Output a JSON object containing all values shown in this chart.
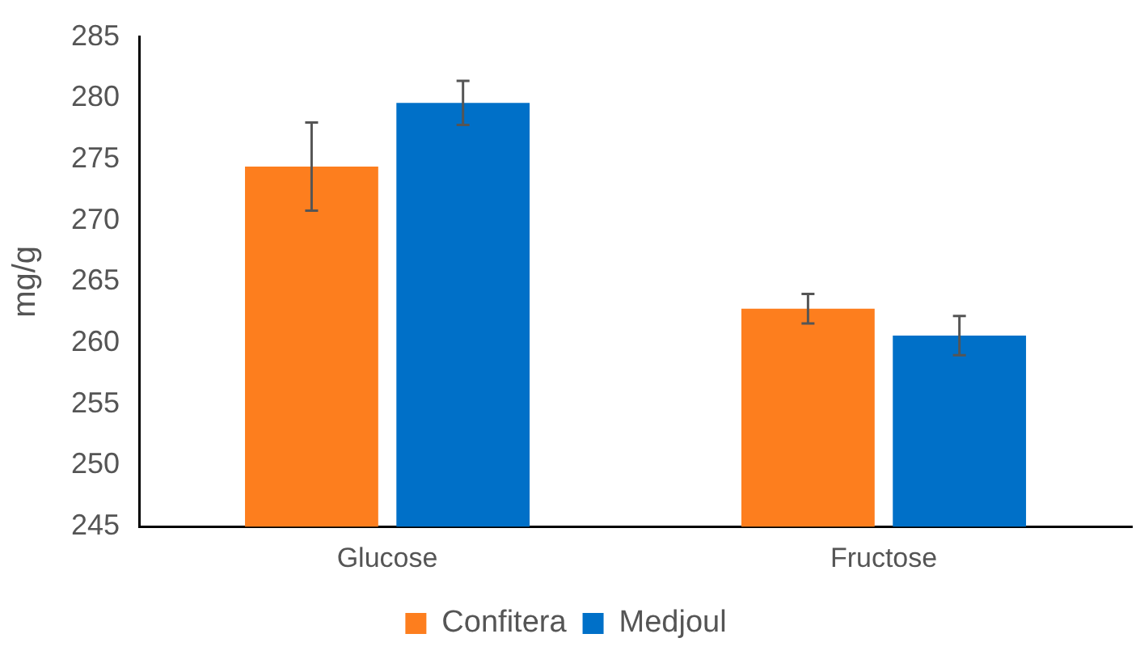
{
  "chart_data": {
    "type": "bar",
    "ylabel": "mg/g",
    "categories": [
      "Glucose",
      "Fructose"
    ],
    "series": [
      {
        "name": "Confitera",
        "color": "#fd7e1e",
        "values": [
          274.4,
          262.8
        ],
        "errors": [
          3.6,
          1.2
        ]
      },
      {
        "name": "Medjoul",
        "color": "#0070c8",
        "values": [
          279.6,
          260.6
        ],
        "errors": [
          1.8,
          1.6
        ]
      }
    ],
    "ylim": [
      245,
      285
    ],
    "yticks": [
      245,
      250,
      255,
      260,
      265,
      270,
      275,
      280,
      285
    ],
    "grid": false,
    "legend": "bottom"
  }
}
